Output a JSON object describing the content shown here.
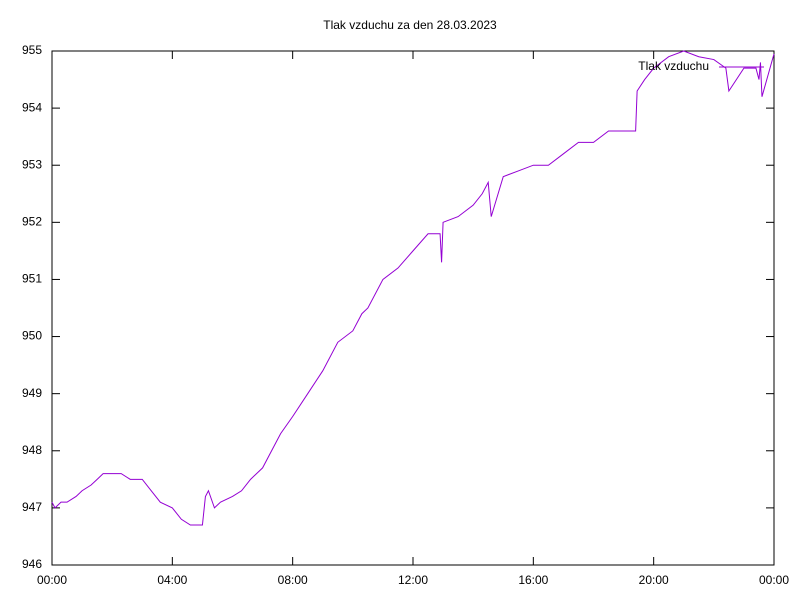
{
  "chart_data": {
    "type": "line",
    "title": "Tlak vzduchu za den 28.03.2023",
    "x": [
      0,
      0.1,
      0.3,
      0.5,
      0.8,
      1,
      1.3,
      1.5,
      1.7,
      2,
      2.3,
      2.6,
      3,
      3.3,
      3.6,
      4,
      4.3,
      4.6,
      5,
      5.1,
      5.2,
      5.4,
      5.6,
      6,
      6.3,
      6.6,
      7,
      7.3,
      7.6,
      8,
      8.5,
      9,
      9.5,
      10,
      10.3,
      10.5,
      11,
      11.5,
      12,
      12.5,
      12.9,
      12.95,
      13,
      13.5,
      14,
      14.3,
      14.5,
      14.6,
      15,
      15.5,
      16,
      16.5,
      17,
      17.5,
      18,
      18.5,
      19,
      19.4,
      19.45,
      19.7,
      20,
      20.5,
      21,
      21.5,
      22,
      22.4,
      22.5,
      23,
      23.4,
      23.5,
      23.55,
      23.6,
      24
    ],
    "series": [
      {
        "name": "Tlak vzduchu",
        "color": "#9400d3",
        "values": [
          947.1,
          947.0,
          947.1,
          947.1,
          947.2,
          947.3,
          947.4,
          947.5,
          947.6,
          947.6,
          947.6,
          947.5,
          947.5,
          947.3,
          947.1,
          947.0,
          946.8,
          946.7,
          946.7,
          947.2,
          947.3,
          947.0,
          947.1,
          947.2,
          947.3,
          947.5,
          947.7,
          948.0,
          948.3,
          948.6,
          949.0,
          949.4,
          949.9,
          950.1,
          950.4,
          950.5,
          951.0,
          951.2,
          951.5,
          951.8,
          951.8,
          951.3,
          952.0,
          952.1,
          952.3,
          952.5,
          952.7,
          952.1,
          952.8,
          952.9,
          953.0,
          953.0,
          953.2,
          953.4,
          953.4,
          953.6,
          953.6,
          953.6,
          954.3,
          954.5,
          954.7,
          954.9,
          955.0,
          954.9,
          954.85,
          954.7,
          954.3,
          954.7,
          954.7,
          954.5,
          954.8,
          954.2,
          954.95
        ]
      }
    ],
    "xlim": [
      0,
      24
    ],
    "xticks": [
      {
        "value": 0,
        "label": "00:00"
      },
      {
        "value": 4,
        "label": "04:00"
      },
      {
        "value": 8,
        "label": "08:00"
      },
      {
        "value": 12,
        "label": "12:00"
      },
      {
        "value": 16,
        "label": "16:00"
      },
      {
        "value": 20,
        "label": "20:00"
      },
      {
        "value": 24,
        "label": "00:00"
      }
    ],
    "ylim": [
      946,
      955
    ],
    "yticks": [
      946,
      947,
      948,
      949,
      950,
      951,
      952,
      953,
      954,
      955
    ],
    "grid": false,
    "legend_position": "top-right"
  }
}
